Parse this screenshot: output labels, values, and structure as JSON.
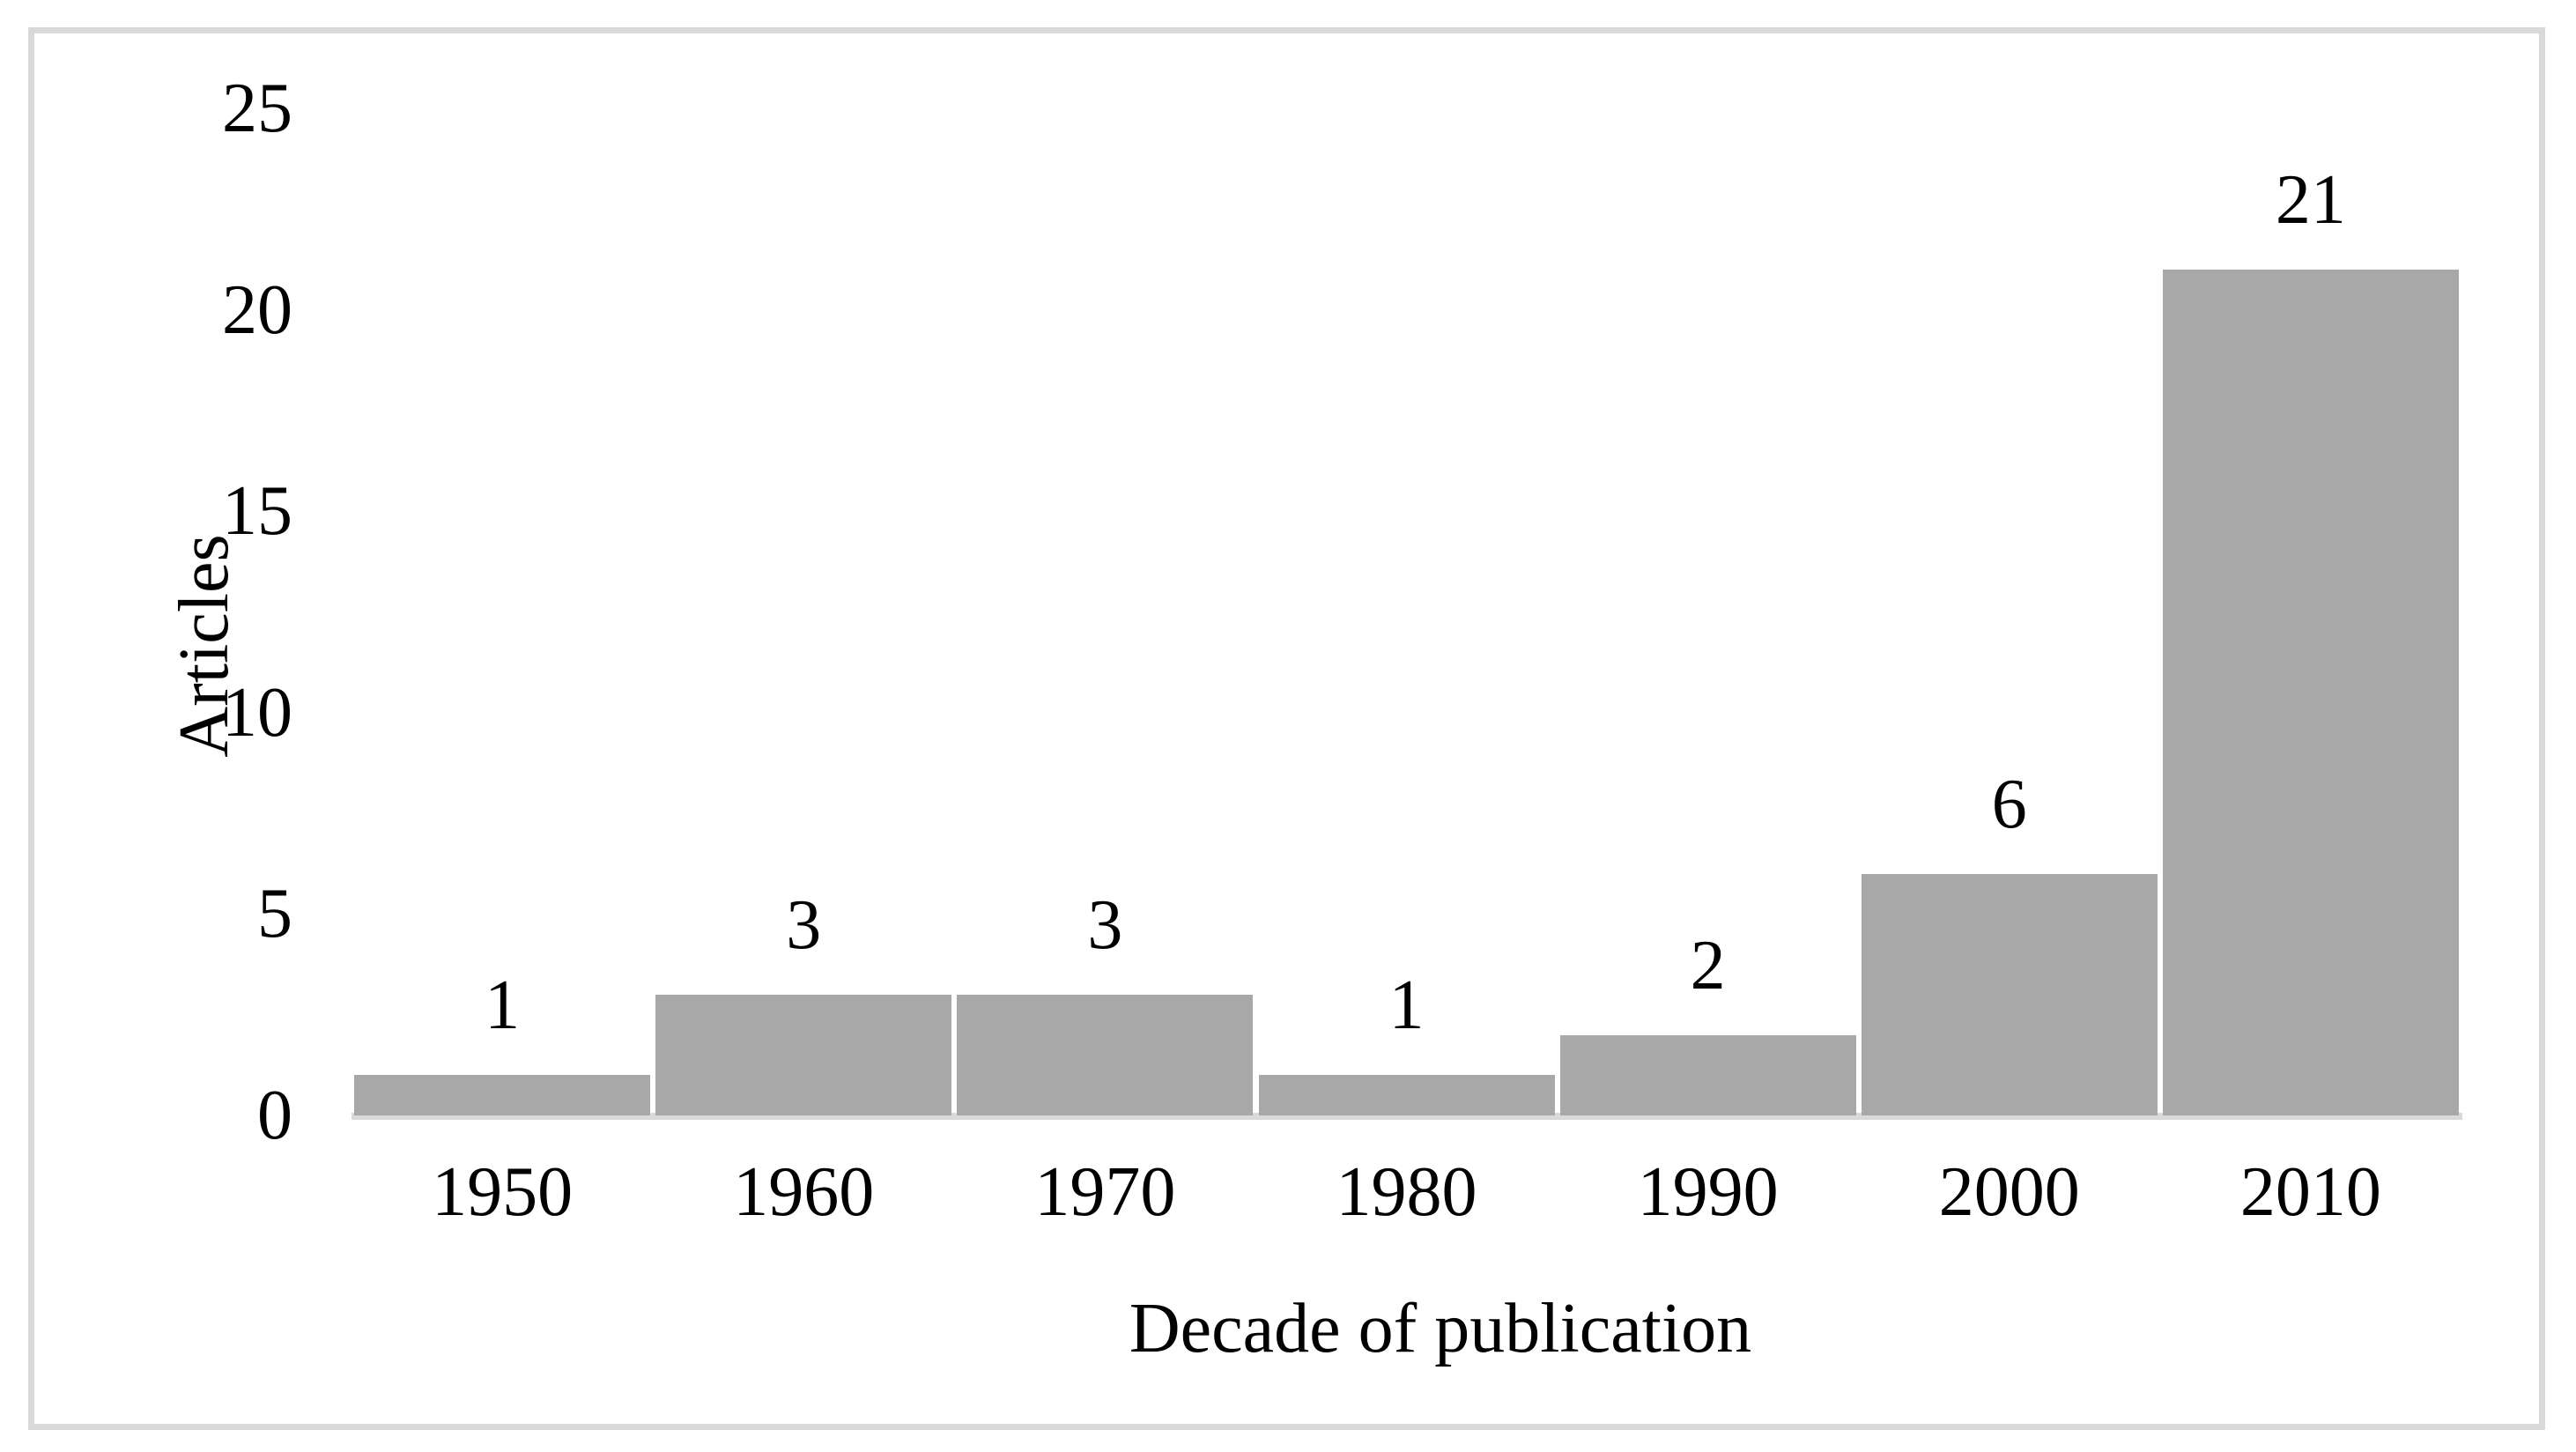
{
  "chart_data": {
    "type": "bar",
    "title": "",
    "categories": [
      "1950",
      "1960",
      "1970",
      "1980",
      "1990",
      "2000",
      "2010"
    ],
    "values": [
      1,
      3,
      3,
      1,
      2,
      6,
      21
    ],
    "data_labels": [
      "1",
      "3",
      "3",
      "1",
      "2",
      "6",
      "21"
    ],
    "xlabel": "Decade of publication",
    "ylabel": "Articles",
    "ylim": [
      0,
      25
    ],
    "yticks": [
      0,
      5,
      10,
      15,
      20,
      25
    ],
    "grid": false,
    "legend_position": "none",
    "colors": {
      "bar_fill": "#a8a8a8",
      "axis_line": "#d9d9d9",
      "frame_border": "#d9d9d9",
      "text": "#000000",
      "background": "#ffffff"
    }
  }
}
